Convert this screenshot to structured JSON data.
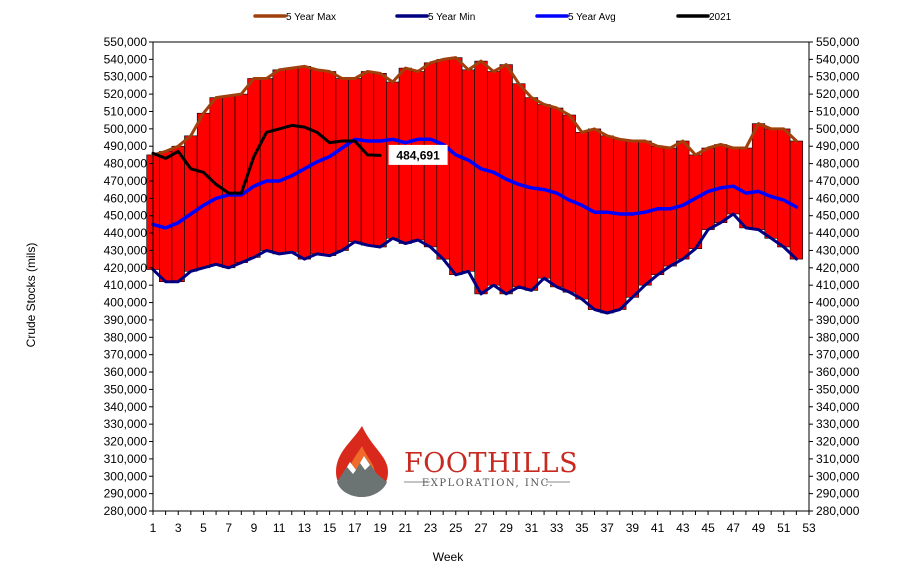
{
  "chart_data": {
    "type": "line",
    "xlabel": "Week",
    "ylabel": "Crude Stocks (mils)",
    "ylim": [
      280000,
      550000
    ],
    "y_tick_step": 10000,
    "xlim": [
      1,
      53
    ],
    "x_ticks": [
      1,
      3,
      5,
      7,
      9,
      11,
      13,
      15,
      17,
      19,
      21,
      23,
      25,
      27,
      29,
      31,
      33,
      35,
      37,
      39,
      41,
      43,
      45,
      47,
      49,
      51,
      53
    ],
    "grid": false,
    "legend_position": "top",
    "range_fill_color": "#ff0000",
    "weeks": [
      1,
      2,
      3,
      4,
      5,
      6,
      7,
      8,
      9,
      10,
      11,
      12,
      13,
      14,
      15,
      16,
      17,
      18,
      19,
      20,
      21,
      22,
      23,
      24,
      25,
      26,
      27,
      28,
      29,
      30,
      31,
      32,
      33,
      34,
      35,
      36,
      37,
      38,
      39,
      40,
      41,
      42,
      43,
      44,
      45,
      46,
      47,
      48,
      49,
      50,
      51,
      52
    ],
    "series": [
      {
        "name": "5 Year Max",
        "color": "#a0400c",
        "values": [
          485000,
          487000,
          490000,
          496000,
          509000,
          518000,
          519000,
          520000,
          529000,
          529000,
          534000,
          535000,
          536000,
          534000,
          533000,
          529000,
          529000,
          533000,
          532000,
          527000,
          535000,
          533000,
          538000,
          540000,
          541000,
          534000,
          539000,
          533000,
          537000,
          526000,
          518000,
          514000,
          512000,
          508000,
          498000,
          500000,
          496000,
          494000,
          493000,
          493000,
          490000,
          489000,
          493000,
          485000,
          489000,
          491000,
          489000,
          489000,
          503000,
          500000,
          500000,
          493000
        ]
      },
      {
        "name": "5 Year Min",
        "color": "#000080",
        "values": [
          419000,
          412000,
          412000,
          418000,
          420000,
          422000,
          420000,
          423000,
          426000,
          430000,
          428000,
          429000,
          425000,
          428000,
          427000,
          430000,
          435000,
          433000,
          432000,
          437000,
          434000,
          436000,
          432000,
          425000,
          416000,
          418000,
          405000,
          410000,
          405000,
          409000,
          407000,
          414000,
          409000,
          406000,
          402000,
          396000,
          394000,
          396000,
          403000,
          410000,
          416000,
          421000,
          425000,
          431000,
          442000,
          446000,
          451000,
          443000,
          442000,
          437000,
          432000,
          425000
        ]
      },
      {
        "name": "5 Year Avg",
        "color": "#0000ff",
        "values": [
          445000,
          443000,
          446000,
          451000,
          456000,
          460000,
          462000,
          462000,
          467000,
          470000,
          470000,
          473000,
          477000,
          481000,
          484000,
          489000,
          494000,
          493000,
          493000,
          494000,
          492000,
          494000,
          494000,
          491000,
          485000,
          482000,
          477000,
          475000,
          471000,
          468000,
          466000,
          465000,
          463000,
          459000,
          456000,
          452000,
          452000,
          451000,
          451000,
          452000,
          454000,
          454000,
          456000,
          460000,
          464000,
          466000,
          467000,
          463000,
          464000,
          461000,
          459000,
          455000
        ]
      },
      {
        "name": "2021",
        "color": "#000000",
        "values": [
          486000,
          483000,
          487000,
          477000,
          475000,
          468000,
          463000,
          463000,
          484000,
          498000,
          500000,
          502000,
          501000,
          498000,
          492000,
          493000,
          493000,
          485000,
          484691
        ]
      }
    ],
    "annotations": [
      {
        "text": "484,691",
        "week": 19,
        "value": 484691
      }
    ]
  },
  "logo": {
    "name": "FOOTHILLS",
    "tagline": "EXPLORATION, INC."
  }
}
